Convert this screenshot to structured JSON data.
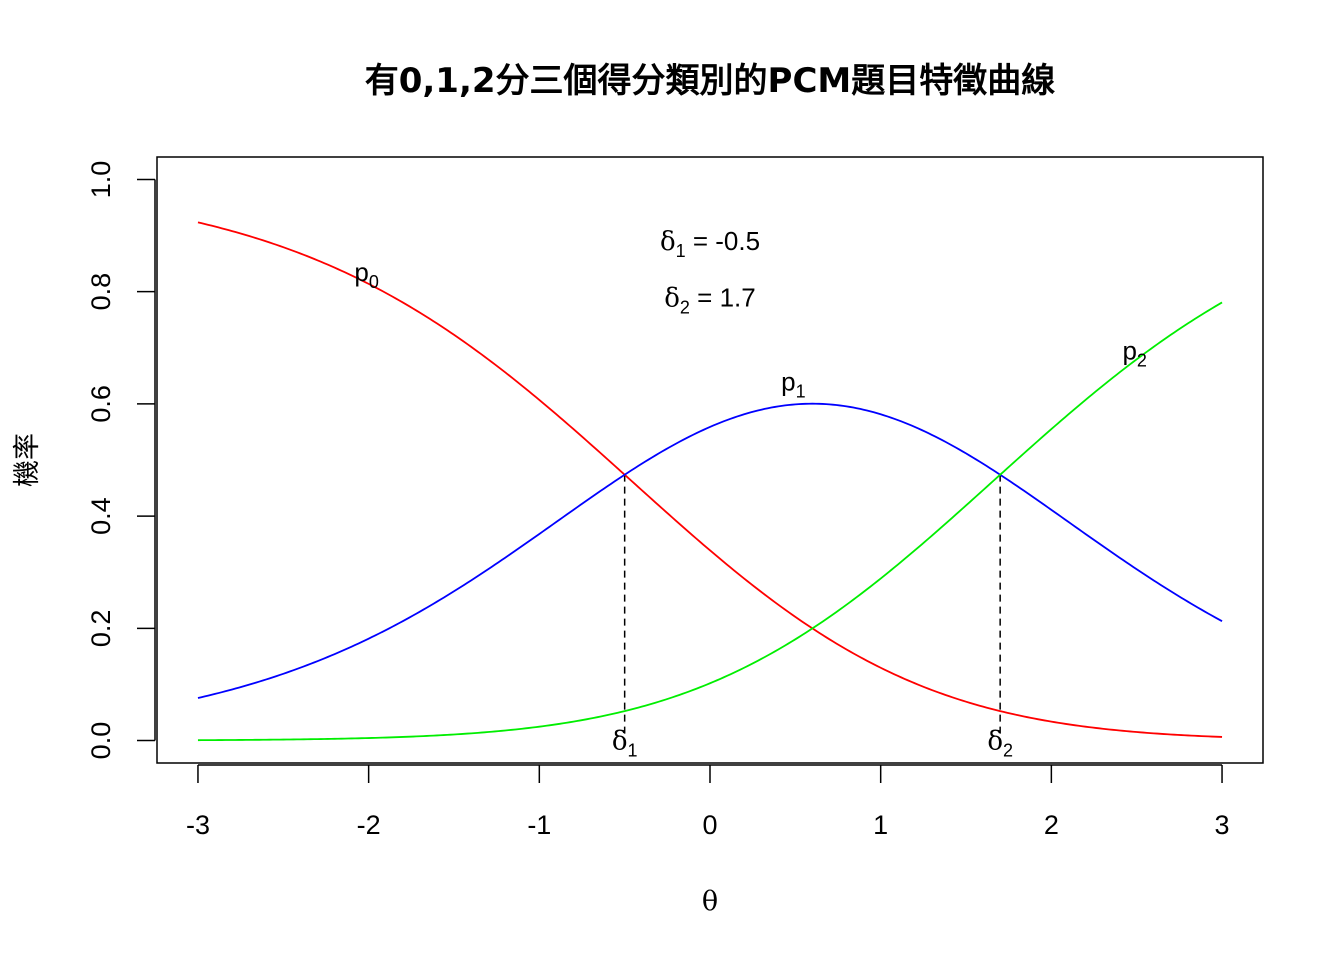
{
  "chart_data": {
    "type": "line",
    "title": "有0,1,2分三個得分類別的PCM題目特徵曲線",
    "xlabel": "θ",
    "ylabel": "機率",
    "xlim": [
      -3.24,
      3.24
    ],
    "ylim": [
      -0.04,
      1.04
    ],
    "xticks": [
      -3,
      -2,
      -1,
      0,
      1,
      2,
      3
    ],
    "xtick_labels": [
      "-3",
      "-2",
      "-1",
      "0",
      "1",
      "2",
      "3"
    ],
    "yticks": [
      0,
      0.2,
      0.4,
      0.6,
      0.8,
      1
    ],
    "ytick_labels": [
      "0.0",
      "0.2",
      "0.4",
      "0.6",
      "0.8",
      "1.0"
    ],
    "grid": false,
    "legend": "none",
    "model": "PCM",
    "x_range": [
      -3,
      3
    ],
    "deltas": [
      -0.5,
      1.7
    ],
    "series": [
      {
        "name": "p0",
        "color": "#ff0000",
        "category": 0
      },
      {
        "name": "p1",
        "color": "#0000ff",
        "category": 1
      },
      {
        "name": "p2",
        "color": "#00ee00",
        "category": 2
      }
    ],
    "curve_labels": [
      {
        "base": "p",
        "sub": "0",
        "x": -2.0,
        "y": 0.835
      },
      {
        "base": "p",
        "sub": "1",
        "x": 0.5,
        "y": 0.64
      },
      {
        "base": "p",
        "sub": "2",
        "x": 2.5,
        "y": 0.695
      }
    ],
    "delta_lines": [
      {
        "x": -0.5,
        "y": 0.474,
        "base": "δ",
        "sub": "1"
      },
      {
        "x": 1.7,
        "y": 0.474,
        "base": "δ",
        "sub": "2"
      }
    ],
    "annotations": [
      {
        "base": "δ",
        "sub": "1",
        "text": " = -0.5",
        "x": 0.0,
        "y": 0.89
      },
      {
        "base": "δ",
        "sub": "2",
        "text": " = 1.7",
        "x": 0.0,
        "y": 0.79
      }
    ]
  }
}
